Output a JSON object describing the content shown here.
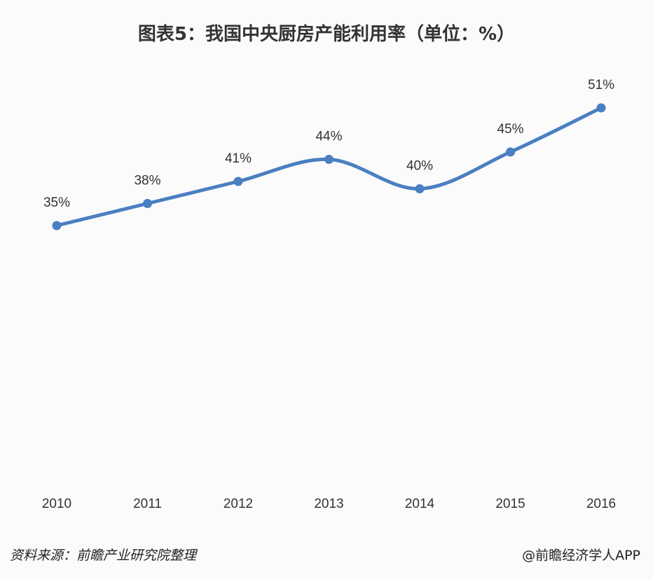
{
  "header": {
    "title": "图表5：我国中央厨房产能利用率（单位：%）"
  },
  "footer": {
    "source": "资料来源：前瞻产业研究院整理",
    "brand": "@前瞻经济学人APP"
  },
  "colors": {
    "line": "#4a7fc1",
    "text": "#333333",
    "background": "#fbfbfc"
  },
  "chart_data": {
    "type": "line",
    "title": "图表5：我国中央厨房产能利用率（单位：%）",
    "xlabel": "",
    "ylabel": "",
    "categories": [
      "2010",
      "2011",
      "2012",
      "2013",
      "2014",
      "2015",
      "2016"
    ],
    "series": [
      {
        "name": "中央厨房产能利用率",
        "values": [
          35,
          38,
          41,
          44,
          40,
          45,
          51
        ],
        "unit": "%"
      }
    ],
    "data_labels": [
      "35%",
      "38%",
      "41%",
      "44%",
      "40%",
      "45%",
      "51%"
    ],
    "smooth": true,
    "grid": false,
    "legend": "none",
    "y_axis_visible": false
  }
}
